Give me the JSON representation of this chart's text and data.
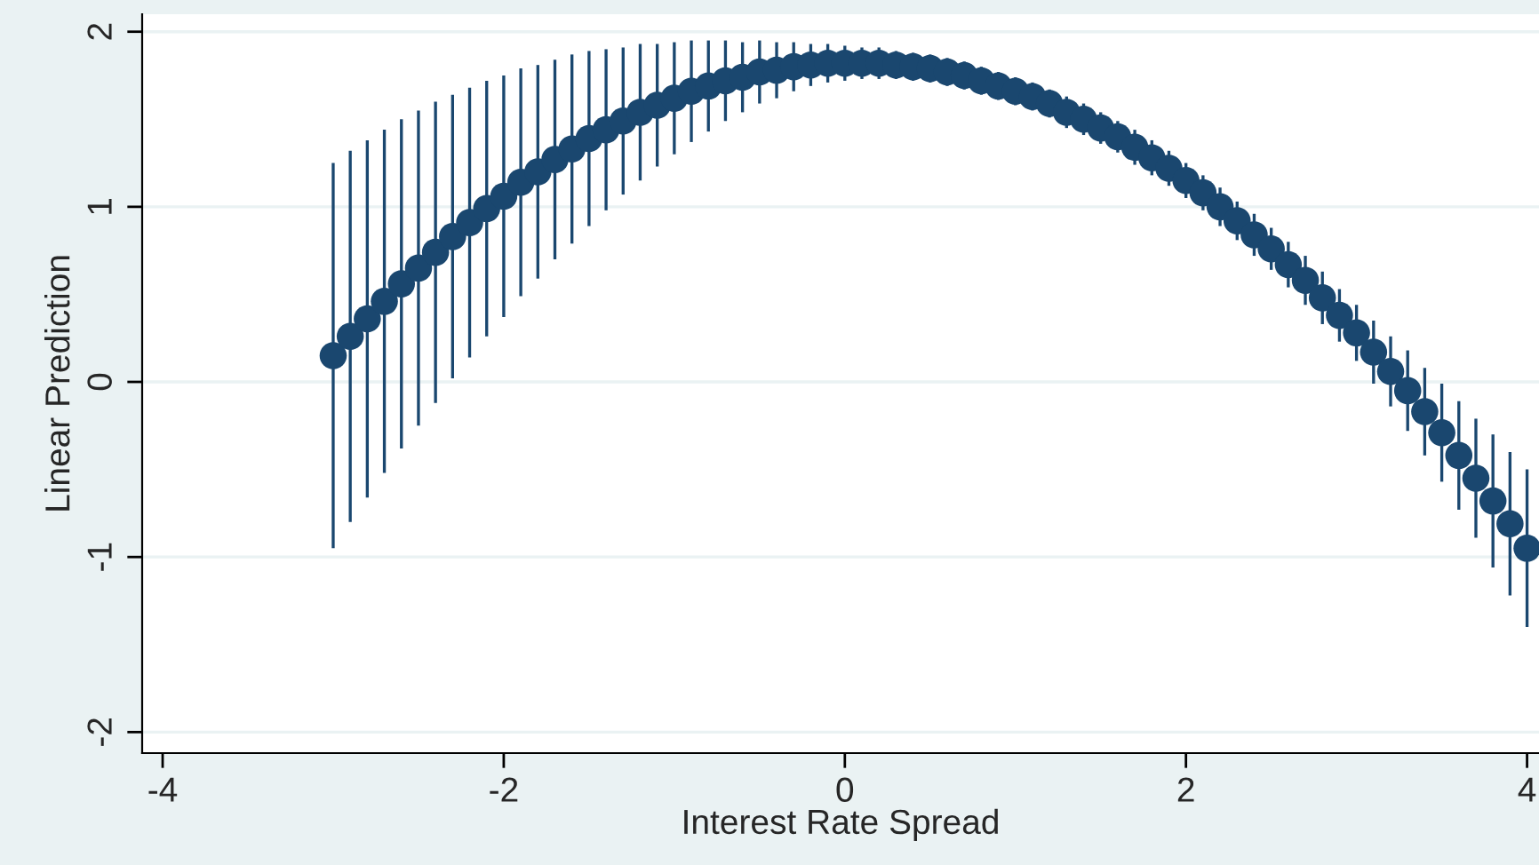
{
  "chart_data": {
    "type": "scatter",
    "xlabel": "Interest Rate Spread",
    "ylabel": "Linear Prediction",
    "x": [
      -3.0,
      -2.9,
      -2.8,
      -2.7,
      -2.6,
      -2.5,
      -2.4,
      -2.3,
      -2.2,
      -2.1,
      -2.0,
      -1.9,
      -1.8,
      -1.7,
      -1.6,
      -1.5,
      -1.4,
      -1.3,
      -1.2,
      -1.1,
      -1.0,
      -0.9,
      -0.8,
      -0.7,
      -0.6,
      -0.5,
      -0.4,
      -0.3,
      -0.2,
      -0.1,
      0.0,
      0.1,
      0.2,
      0.3,
      0.4,
      0.5,
      0.6,
      0.7,
      0.8,
      0.9,
      1.0,
      1.1,
      1.2,
      1.3,
      1.4,
      1.5,
      1.6,
      1.7,
      1.8,
      1.9,
      2.0,
      2.1,
      2.2,
      2.3,
      2.4,
      2.5,
      2.6,
      2.7,
      2.8,
      2.9,
      3.0,
      3.1,
      3.2,
      3.3,
      3.4,
      3.5,
      3.6,
      3.7,
      3.8,
      3.9,
      4.0
    ],
    "series": [
      {
        "color": "#1a476f",
        "values": [
          0.15,
          0.26,
          0.36,
          0.46,
          0.56,
          0.65,
          0.74,
          0.83,
          0.91,
          0.99,
          1.06,
          1.14,
          1.2,
          1.27,
          1.33,
          1.39,
          1.44,
          1.49,
          1.54,
          1.58,
          1.62,
          1.66,
          1.69,
          1.72,
          1.74,
          1.77,
          1.78,
          1.8,
          1.81,
          1.82,
          1.82,
          1.82,
          1.82,
          1.81,
          1.8,
          1.79,
          1.77,
          1.75,
          1.72,
          1.69,
          1.66,
          1.63,
          1.59,
          1.54,
          1.5,
          1.45,
          1.4,
          1.34,
          1.28,
          1.22,
          1.15,
          1.08,
          1.0,
          0.92,
          0.84,
          0.76,
          0.67,
          0.58,
          0.48,
          0.38,
          0.28,
          0.17,
          0.06,
          -0.05,
          -0.17,
          -0.29,
          -0.42,
          -0.55,
          -0.68,
          -0.81,
          -0.95
        ],
        "errors": [
          1.1,
          1.06,
          1.02,
          0.98,
          0.94,
          0.9,
          0.86,
          0.81,
          0.77,
          0.73,
          0.69,
          0.65,
          0.61,
          0.57,
          0.54,
          0.5,
          0.46,
          0.42,
          0.39,
          0.35,
          0.32,
          0.29,
          0.26,
          0.23,
          0.2,
          0.18,
          0.16,
          0.14,
          0.12,
          0.11,
          0.1,
          0.09,
          0.09,
          0.08,
          0.08,
          0.08,
          0.08,
          0.08,
          0.08,
          0.08,
          0.08,
          0.08,
          0.08,
          0.09,
          0.09,
          0.09,
          0.09,
          0.1,
          0.1,
          0.1,
          0.1,
          0.1,
          0.11,
          0.11,
          0.12,
          0.12,
          0.13,
          0.14,
          0.15,
          0.15,
          0.16,
          0.18,
          0.2,
          0.23,
          0.25,
          0.28,
          0.31,
          0.34,
          0.38,
          0.41,
          0.45
        ]
      }
    ],
    "marker": "circle",
    "grid": "y",
    "xlim": [
      -4.12,
      4.07
    ],
    "ylim": [
      -2.12,
      2.1
    ],
    "xticks": [
      -4,
      -2,
      0,
      2,
      4
    ],
    "yticks": [
      -2,
      -1,
      0,
      1,
      2
    ]
  }
}
